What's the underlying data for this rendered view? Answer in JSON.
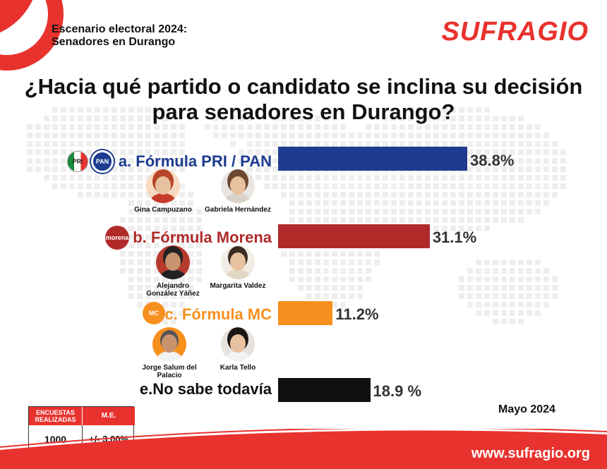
{
  "header": {
    "subtitle_line1": "Escenario electoral 2024:",
    "subtitle_line2": "Senadores en Durango",
    "brand": "SUFRAGIO"
  },
  "chart_data": {
    "type": "bar",
    "orientation": "horizontal",
    "title_line1": "¿Hacia qué partido o candidato se inclina su decisión",
    "title_line2": "para senadores en Durango?",
    "categories": [
      "a. Fórmula PRI / PAN",
      "b. Fórmula Morena",
      "c. Fórmula MC",
      "e.No sabe todavía"
    ],
    "values": [
      38.8,
      31.1,
      11.2,
      18.9
    ],
    "value_labels": [
      "38.8%",
      "31.1%",
      "11.2%",
      "18.9 %"
    ],
    "colors": [
      "#1d3c8f",
      "#b02a2a",
      "#f7901e",
      "#111111"
    ],
    "label_colors": [
      "#1d3c8f",
      "#b02a2a",
      "#f7901e",
      "#111111"
    ],
    "xlim": [
      0,
      38.8
    ]
  },
  "logos": {
    "pri": "PRI",
    "pan": "PAN",
    "morena": "morena",
    "mc": "MC"
  },
  "candidates": {
    "pri_pan": [
      "Gina Campuzano",
      "Gabriela Hernández"
    ],
    "morena": [
      "Alejandro González Yáñez",
      "Margarita Valdez"
    ],
    "mc": [
      "Jorge Salum del Palacio",
      "Karla Tello"
    ]
  },
  "survey": {
    "col1_header": "ENCUESTAS REALIZADAS",
    "col2_header": "M.E.",
    "col1_value": "1000",
    "col2_value": "+/- 3.00%"
  },
  "date": "Mayo 2024",
  "footer": {
    "url": "www.sufragio.org"
  },
  "theme": {
    "accent": "#e8322e"
  }
}
